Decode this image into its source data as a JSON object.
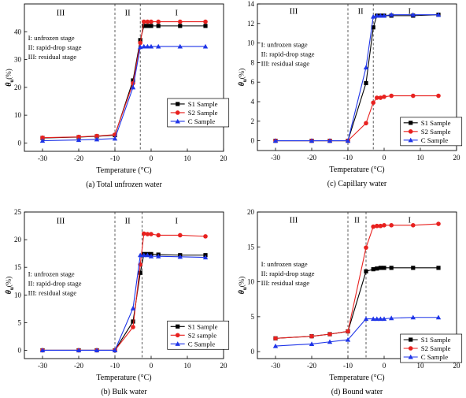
{
  "chart_data": [
    {
      "type": "line",
      "caption": "(a) Total unfrozen water",
      "xlabel": "Temperature (°C)",
      "ylabel_main": "θ",
      "ylabel_sub": "u",
      "ylabel_unit": "(%)",
      "xlim": [
        -35,
        20
      ],
      "ylim": [
        -3,
        50
      ],
      "xticks": [
        -30,
        -20,
        -10,
        0,
        10,
        20
      ],
      "yticks": [
        0,
        10,
        20,
        30,
        40
      ],
      "stage_lines": [
        -10,
        -3
      ],
      "stage_labels": [
        {
          "text": "III",
          "x": -25,
          "y": 47
        },
        {
          "text": "II",
          "x": -6.5,
          "y": 47
        },
        {
          "text": "I",
          "x": 7,
          "y": 47
        }
      ],
      "notes": [
        "I: unfrozen stage",
        "II: rapid-drop stage",
        "III: residual stage"
      ],
      "notes_anchor": {
        "x": -34,
        "y": 37
      },
      "legend_anchor": {
        "x": 4.5,
        "y": 16
      },
      "x": [
        -30,
        -20,
        -15,
        -10,
        -5,
        -3,
        -2,
        -1,
        0,
        2,
        8,
        15
      ],
      "series": [
        {
          "name": "S1 Sample",
          "color": "#000000",
          "marker": "square",
          "values": [
            1.8,
            2.1,
            2.4,
            2.8,
            22.5,
            37.0,
            42.1,
            42.1,
            42.1,
            42.1,
            42.1,
            42.1
          ]
        },
        {
          "name": "S2 Sample",
          "color": "#e8211f",
          "marker": "circle",
          "values": [
            1.9,
            2.2,
            2.5,
            3.0,
            21.5,
            36.0,
            43.6,
            43.6,
            43.6,
            43.6,
            43.6,
            43.6
          ]
        },
        {
          "name": "C Sample",
          "color": "#1f35e8",
          "marker": "triangle",
          "values": [
            0.8,
            1.1,
            1.3,
            1.6,
            20.0,
            34.5,
            34.7,
            34.7,
            34.7,
            34.7,
            34.7,
            34.7
          ]
        }
      ]
    },
    {
      "type": "line",
      "caption": "(c) Capillary water",
      "xlabel": "Temperature (°C)",
      "ylabel_main": "θ",
      "ylabel_sub": "u",
      "ylabel_unit": "(%)",
      "xlim": [
        -35,
        20
      ],
      "ylim": [
        -1,
        14
      ],
      "xticks": [
        -30,
        -20,
        -10,
        0,
        10,
        20
      ],
      "yticks": [
        0,
        2,
        4,
        6,
        8,
        10,
        12,
        14
      ],
      "stage_lines": [
        -10,
        -3
      ],
      "stage_labels": [
        {
          "text": "III",
          "x": -25,
          "y": 13.3
        },
        {
          "text": "II",
          "x": -6.5,
          "y": 13.3
        },
        {
          "text": "I",
          "x": 7,
          "y": 13.3
        }
      ],
      "notes": [
        "I: unfrozen stage",
        "II: rapid-drop stage",
        "III: residual stage"
      ],
      "notes_anchor": {
        "x": -34,
        "y": 9.6
      },
      "legend_anchor": {
        "x": 4.5,
        "y": 2.4
      },
      "x": [
        -30,
        -20,
        -15,
        -10,
        -5,
        -3,
        -2,
        -1,
        0,
        2,
        8,
        15
      ],
      "series": [
        {
          "name": "S1 Sample",
          "color": "#000000",
          "marker": "square",
          "values": [
            0,
            0,
            0,
            0,
            5.9,
            11.6,
            12.8,
            12.8,
            12.8,
            12.8,
            12.8,
            12.9
          ]
        },
        {
          "name": "S2 Sample",
          "color": "#e8211f",
          "marker": "circle",
          "values": [
            0,
            0,
            0,
            0,
            1.8,
            3.9,
            4.4,
            4.4,
            4.5,
            4.6,
            4.6,
            4.6
          ]
        },
        {
          "name": "C Sample",
          "color": "#1f35e8",
          "marker": "triangle",
          "values": [
            0,
            0,
            0,
            0,
            7.5,
            12.7,
            12.8,
            12.8,
            12.8,
            12.9,
            12.9,
            12.9
          ]
        }
      ]
    },
    {
      "type": "line",
      "caption": "(b) Bulk water",
      "xlabel": "Temperature (°C)",
      "ylabel_main": "θ",
      "ylabel_sub": "u",
      "ylabel_unit": "(%)",
      "xlim": [
        -35,
        20
      ],
      "ylim": [
        -1.5,
        25
      ],
      "xticks": [
        -30,
        -20,
        -10,
        0,
        10,
        20
      ],
      "yticks": [
        0,
        5,
        10,
        15,
        20,
        25
      ],
      "stage_lines": [
        -10,
        -2.5
      ],
      "stage_labels": [
        {
          "text": "III",
          "x": -25,
          "y": 23.5
        },
        {
          "text": "II",
          "x": -6.5,
          "y": 23.5
        },
        {
          "text": "I",
          "x": 7,
          "y": 23.5
        }
      ],
      "notes": [
        "I: unfrozen stage",
        "II: rapid-drop stage",
        "III: residual stage"
      ],
      "notes_anchor": {
        "x": -34,
        "y": 13.4
      },
      "legend_anchor": {
        "x": 4.5,
        "y": 5.3
      },
      "x": [
        -30,
        -20,
        -15,
        -10,
        -5,
        -3,
        -2,
        -1,
        0,
        2,
        8,
        15
      ],
      "series": [
        {
          "name": "S1 Sample",
          "color": "#000000",
          "marker": "square",
          "values": [
            0,
            0,
            0,
            0,
            5.2,
            14.0,
            17.4,
            17.4,
            17.4,
            17.3,
            17.2,
            17.2
          ]
        },
        {
          "name": "S2 sample",
          "color": "#e8211f",
          "marker": "circle",
          "values": [
            0,
            0,
            0,
            0,
            4.2,
            15.5,
            21.1,
            21.0,
            21.0,
            20.8,
            20.8,
            20.6
          ]
        },
        {
          "name": "C Sample",
          "color": "#1f35e8",
          "marker": "triangle",
          "values": [
            0,
            0,
            0,
            0,
            7.6,
            17.2,
            17.2,
            17.2,
            17.0,
            17.0,
            16.9,
            16.8
          ]
        }
      ]
    },
    {
      "type": "line",
      "caption": "(d) Bound water",
      "xlabel": "Temperature (°C)",
      "ylabel_main": "θ",
      "ylabel_sub": "u",
      "ylabel_unit": "(%)",
      "xlim": [
        -35,
        20
      ],
      "ylim": [
        -1,
        20
      ],
      "xticks": [
        -30,
        -20,
        -10,
        0,
        10,
        20
      ],
      "yticks": [
        0,
        5,
        10,
        15,
        20
      ],
      "stage_lines": [
        -10,
        -5
      ],
      "stage_labels": [
        {
          "text": "III",
          "x": -25,
          "y": 18.9
        },
        {
          "text": "II",
          "x": -7.5,
          "y": 18.9
        },
        {
          "text": "I",
          "x": 7,
          "y": 18.9
        }
      ],
      "notes": [
        "I: unfrozen stage",
        "II: rapid-drop stage",
        "III: residual stage"
      ],
      "notes_anchor": {
        "x": -34,
        "y": 12.2
      },
      "legend_anchor": {
        "x": 4.5,
        "y": 2.5
      },
      "x": [
        -30,
        -20,
        -15,
        -10,
        -5,
        -3,
        -2,
        -1,
        0,
        2,
        8,
        15
      ],
      "series": [
        {
          "name": "S1 Sample",
          "color": "#000000",
          "marker": "square",
          "values": [
            1.9,
            2.2,
            2.5,
            2.9,
            11.5,
            11.8,
            11.9,
            12.0,
            12.0,
            12.0,
            12.0,
            12.0
          ]
        },
        {
          "name": "S2 Sample",
          "color": "#e8211f",
          "marker": "circle",
          "values": [
            1.9,
            2.2,
            2.5,
            2.9,
            14.9,
            17.9,
            18.0,
            18.0,
            18.1,
            18.1,
            18.1,
            18.3
          ]
        },
        {
          "name": "C Sample",
          "color": "#1f35e8",
          "marker": "triangle",
          "values": [
            0.8,
            1.1,
            1.4,
            1.7,
            4.7,
            4.7,
            4.7,
            4.7,
            4.7,
            4.8,
            4.9,
            4.9
          ]
        }
      ]
    }
  ]
}
